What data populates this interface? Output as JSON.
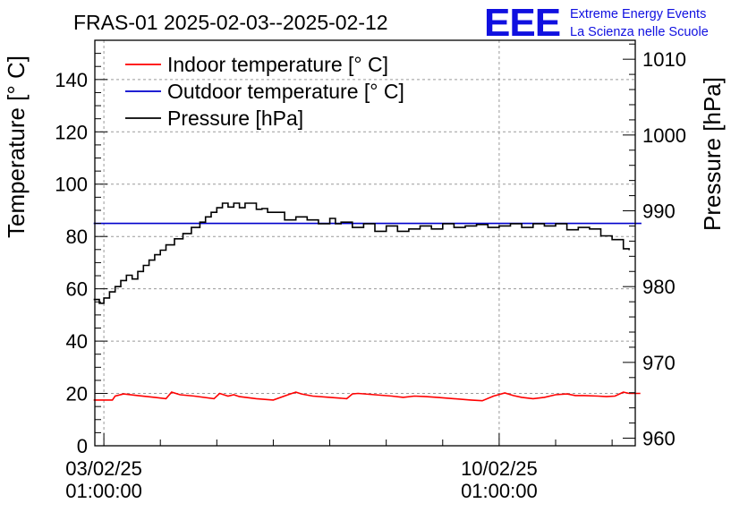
{
  "chart_data": {
    "type": "line",
    "title": "FRAS-01 2025-02-03--2025-02-12",
    "logo": {
      "mark": "EEE",
      "line1": "Extreme Energy Events",
      "line2": "La Scienza nelle Scuole",
      "color": "#1010e0"
    },
    "ylabel_left": "Temperature [° C]",
    "ylabel_right": "Pressure [hPa]",
    "ylim_left": [
      0,
      155
    ],
    "ylim_right": [
      959.0,
      1012.5
    ],
    "yticks_left": [
      0,
      20,
      40,
      60,
      80,
      100,
      120,
      140
    ],
    "yticks_right": [
      960,
      970,
      980,
      990,
      1000,
      1010
    ],
    "xlim_days": [
      -0.16,
      9.41
    ],
    "xticks": [
      {
        "day": 0,
        "date": "03/02/25",
        "time": "01:00:00"
      },
      {
        "day": 7,
        "date": "10/02/25",
        "time": "01:00:00"
      }
    ],
    "grid": true,
    "legend": [
      {
        "label": "Indoor temperature [° C]",
        "color": "#ff0000"
      },
      {
        "label": "Outdoor temperature [° C]",
        "color": "#0000cc"
      },
      {
        "label": "Pressure [hPa]",
        "color": "#000000"
      }
    ],
    "series": [
      {
        "name": "Indoor temperature [° C]",
        "axis": "left",
        "color": "#ff0000",
        "step": false,
        "x": [
          -0.18,
          0.0,
          0.15,
          0.2,
          0.35,
          0.6,
          0.9,
          1.1,
          1.2,
          1.35,
          1.6,
          1.95,
          2.05,
          2.2,
          2.3,
          2.4,
          2.7,
          3.0,
          3.3,
          3.4,
          3.5,
          3.7,
          4.0,
          4.3,
          4.4,
          4.5,
          4.8,
          5.1,
          5.3,
          5.5,
          5.7,
          5.9,
          6.2,
          6.5,
          6.7,
          6.9,
          7.1,
          7.25,
          7.4,
          7.6,
          7.8,
          8.0,
          8.2,
          8.35,
          8.5,
          8.75,
          8.9,
          9.05,
          9.2,
          9.3,
          9.4,
          9.5
        ],
        "y": [
          17.5,
          17.5,
          17.5,
          19.0,
          19.8,
          19.2,
          18.5,
          18.0,
          20.5,
          19.5,
          19.0,
          18.0,
          20.0,
          19.0,
          19.5,
          18.8,
          18.0,
          17.5,
          19.8,
          20.5,
          19.8,
          19.0,
          18.5,
          18.0,
          19.8,
          20.0,
          19.5,
          19.0,
          18.5,
          19.0,
          18.8,
          18.5,
          18.0,
          17.5,
          17.2,
          19.0,
          20.2,
          19.2,
          18.5,
          18.0,
          18.5,
          19.5,
          19.8,
          19.2,
          19.2,
          19.0,
          18.8,
          19.0,
          20.5,
          20.0,
          20.0,
          20.0
        ]
      },
      {
        "name": "Outdoor temperature [° C]",
        "axis": "left",
        "color": "#0000cc",
        "step": false,
        "x": [
          -0.18,
          9.52
        ],
        "y": [
          85,
          85
        ]
      },
      {
        "name": "Pressure [hPa]",
        "axis": "right",
        "color": "#000000",
        "step": true,
        "x": [
          -0.18,
          -0.08,
          0.0,
          0.1,
          0.2,
          0.3,
          0.4,
          0.5,
          0.6,
          0.7,
          0.8,
          0.9,
          1.0,
          1.1,
          1.25,
          1.4,
          1.55,
          1.7,
          1.8,
          1.9,
          2.0,
          2.1,
          2.2,
          2.3,
          2.4,
          2.5,
          2.6,
          2.7,
          2.8,
          2.9,
          3.0,
          3.2,
          3.4,
          3.6,
          3.8,
          4.0,
          4.1,
          4.2,
          4.4,
          4.6,
          4.8,
          5.0,
          5.2,
          5.4,
          5.6,
          5.8,
          6.0,
          6.2,
          6.4,
          6.6,
          6.8,
          7.0,
          7.2,
          7.4,
          7.6,
          7.8,
          8.0,
          8.2,
          8.4,
          8.6,
          8.8,
          9.0,
          9.2,
          9.3
        ],
        "y": [
          978.3,
          977.8,
          978.5,
          979.3,
          980.0,
          980.8,
          981.5,
          981.0,
          982.0,
          982.8,
          983.5,
          984.2,
          984.8,
          985.5,
          986.3,
          987.0,
          987.8,
          988.5,
          989.2,
          989.8,
          990.4,
          991.0,
          990.5,
          991.0,
          990.4,
          991.0,
          991.0,
          990.2,
          990.3,
          989.8,
          989.8,
          988.8,
          989.2,
          988.8,
          988.3,
          989.0,
          988.3,
          988.5,
          987.8,
          988.3,
          987.3,
          988.0,
          987.3,
          987.6,
          988.0,
          987.6,
          988.3,
          987.8,
          988.0,
          988.2,
          987.8,
          988.0,
          988.3,
          987.8,
          988.3,
          988.0,
          988.3,
          987.5,
          987.8,
          987.6,
          986.7,
          986.2,
          985.0,
          984.8
        ]
      }
    ]
  }
}
